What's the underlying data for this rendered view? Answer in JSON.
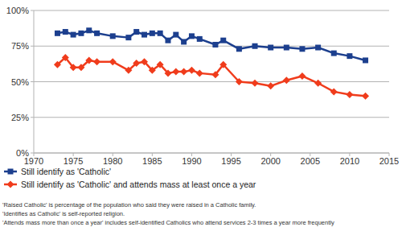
{
  "chart_data": {
    "type": "line",
    "x": [
      1973,
      1974,
      1975,
      1976,
      1977,
      1978,
      1980,
      1982,
      1983,
      1984,
      1985,
      1986,
      1987,
      1988,
      1989,
      1990,
      1991,
      1993,
      1994,
      1996,
      1998,
      2000,
      2002,
      2004,
      2006,
      2008,
      2010,
      2012
    ],
    "series": [
      {
        "name": "Still identify as 'Catholic'",
        "color": "#1c3f8e",
        "marker": "square",
        "values": [
          84,
          85,
          83,
          84,
          86,
          84,
          82,
          81,
          85,
          83,
          84,
          84,
          79,
          83,
          78,
          82,
          80,
          76,
          79,
          73,
          75,
          74,
          74,
          73,
          74,
          70,
          68,
          65
        ]
      },
      {
        "name": "Still identify as 'Catholic' and attends mass at least once a year",
        "color": "#f03c1c",
        "marker": "diamond",
        "values": [
          62,
          67,
          60,
          60,
          65,
          64,
          64,
          58,
          63,
          64,
          58,
          62,
          56,
          57,
          57,
          58,
          56,
          55,
          62,
          50,
          49,
          47,
          51,
          54,
          49,
          43,
          41,
          40
        ]
      }
    ],
    "xlim": [
      1970,
      2015
    ],
    "xticks": [
      1970,
      1975,
      1980,
      1985,
      1990,
      1995,
      2000,
      2005,
      2010,
      2015
    ],
    "ylim": [
      0,
      100
    ],
    "yticks": [
      {
        "value": 0,
        "label": "0%"
      },
      {
        "value": 25,
        "label": "25%"
      },
      {
        "value": 50,
        "label": "50%"
      },
      {
        "value": 75,
        "label": "75%"
      },
      {
        "value": 100,
        "label": "100%"
      }
    ],
    "grid": true,
    "legend": "bottom",
    "annotations": [
      "'Raised Catholic' is percentage of the population who said they were raised in a Catholic family.",
      "'Identifies as Catholic' is self-reported religion.",
      "'Attends mass more than once a year' includes self-identified Catholics who attend services 2-3 times a year more frequently"
    ]
  }
}
